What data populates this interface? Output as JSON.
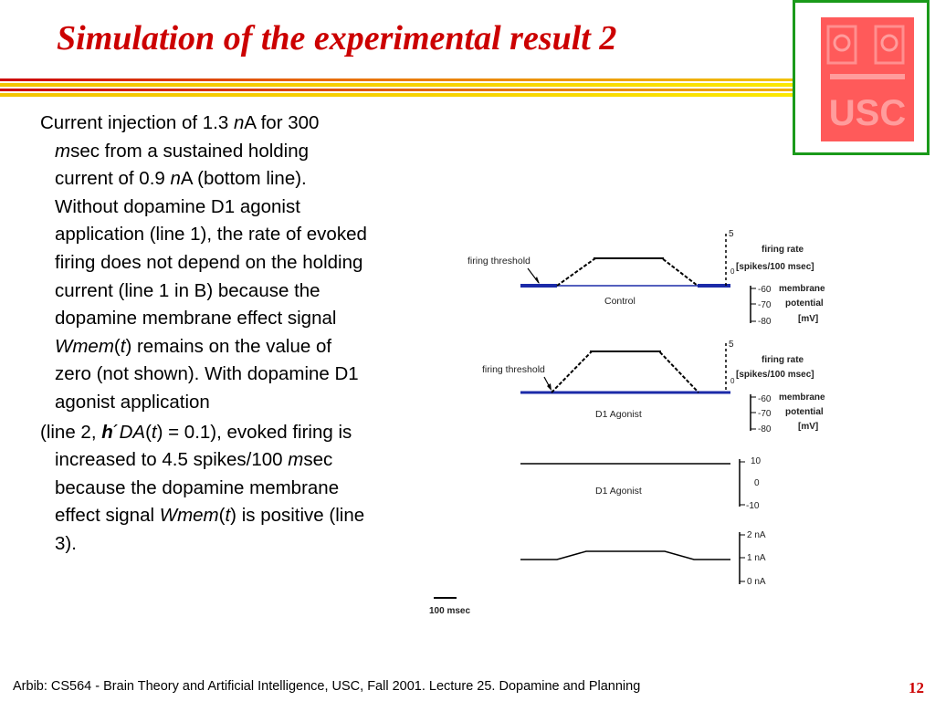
{
  "slide": {
    "title": "Simulation of the experimental result 2",
    "page_number": "12",
    "footer": "Arbib: CS564 - Brain Theory and Artificial Intelligence,  USC, Fall 2001. Lecture 25. Dopamine and Planning"
  },
  "body": {
    "para1": [
      {
        "t": "Current injection of 1.3 "
      },
      {
        "t": "n",
        "i": true
      },
      {
        "t": "A for 300 "
      },
      {
        "t": "m",
        "i": true
      },
      {
        "t": "sec from a sustained holding current of 0.9 "
      },
      {
        "t": "n",
        "i": true
      },
      {
        "t": "A (bottom line). Without dopamine D1 agonist application (line 1), the rate of evoked firing does not depend on the holding current (line 1 in B) because the dopamine membrane effect signal "
      },
      {
        "t": "Wmem",
        "i": true
      },
      {
        "t": "("
      },
      {
        "t": "t",
        "i": true
      },
      {
        "t": ") remains on the value of zero (not shown). With dopamine D1 agonist application"
      }
    ],
    "para2": [
      {
        "t": "(line 2, "
      },
      {
        "t": "h",
        "i": true,
        "b": true
      },
      {
        "t": "´"
      },
      {
        "t": "DA",
        "i": true
      },
      {
        "t": "("
      },
      {
        "t": "t",
        "i": true
      },
      {
        "t": ") = 0.1), evoked firing is increased to 4.5 spikes/100 "
      },
      {
        "t": "m",
        "i": true
      },
      {
        "t": "sec because the dopamine membrane effect signal "
      },
      {
        "t": "Wmem",
        "i": true
      },
      {
        "t": "("
      },
      {
        "t": "t",
        "i": true
      },
      {
        "t": ") is positive (line 3)."
      }
    ]
  },
  "figure": {
    "panel1": {
      "threshold_label": "firing threshold",
      "caption": "Control",
      "axis_top": "5",
      "axis_zero": "0",
      "rate_label_1": "firing rate",
      "rate_label_2": "[spikes/100 msec]",
      "mp_ticks": [
        "-60",
        "-70",
        "-80"
      ],
      "mp_label_1": "membrane",
      "mp_label_2": "potential",
      "mp_label_3": "[mV]"
    },
    "panel2": {
      "threshold_label": "firing threshold",
      "caption": "D1 Agonist",
      "axis_top": "5",
      "axis_zero": "0",
      "rate_label_1": "firing rate",
      "rate_label_2": "[spikes/100 msec]",
      "mp_ticks": [
        "-60",
        "-70",
        "-80"
      ],
      "mp_label_1": "membrane",
      "mp_label_2": "potential",
      "mp_label_3": "[mV]"
    },
    "panel3": {
      "caption": "D1 Agonist",
      "ticks": [
        "10",
        "0",
        "-10"
      ]
    },
    "panel4": {
      "ticks": [
        "2 nA",
        "1 nA",
        "0 nA"
      ]
    },
    "scale_bar_label": "100 msec"
  },
  "colors": {
    "title": "#cc0000",
    "trace_blue": "#1b2aa8",
    "logo_fill": "#ff5a5a",
    "logo_border": "#1a9a1a"
  }
}
